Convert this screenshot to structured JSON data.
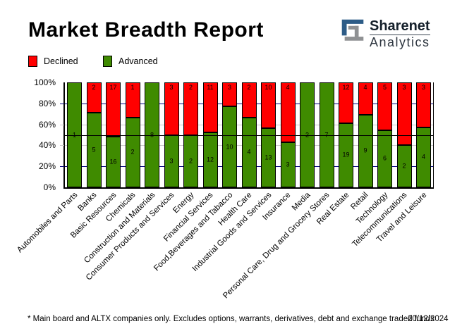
{
  "title": "Market Breadth Report",
  "logo": {
    "line1": "Sharenet",
    "line2": "Analytics",
    "blue": "#2d5c87",
    "grey": "#8f9193"
  },
  "legend": [
    {
      "label": "Declined",
      "color": "#ff0000"
    },
    {
      "label": "Advanced",
      "color": "#3f8b00"
    }
  ],
  "footer": {
    "note": "* Main board and ALTX companies only. Excludes options, warrants, derivatives, debt and exchange traded funds",
    "date": "20/12/2024"
  },
  "chart_data": {
    "type": "bar",
    "stacked": true,
    "normalized": "percent_of_total",
    "title": "Market Breadth Report",
    "categories": [
      "Automobiles and Parts",
      "Banks",
      "Basic Resources",
      "Chemicals",
      "Construction and Materials",
      "Consumer Products and Services",
      "Energy",
      "Financial Services",
      "Food,Beverages and Tabacco",
      "Health Care",
      "Industrial Goods and Services",
      "Insurance",
      "Media",
      "Personal Care, Drug and Grocery Stores",
      "Real Estate",
      "Retail",
      "Technology",
      "Telecommunications",
      "Travel and Leisure"
    ],
    "series": [
      {
        "name": "Declined",
        "color": "#ff0000",
        "values": [
          0,
          2,
          17,
          1,
          0,
          3,
          2,
          11,
          3,
          2,
          10,
          4,
          0,
          0,
          12,
          4,
          5,
          3,
          3
        ]
      },
      {
        "name": "Advanced",
        "color": "#3f8b00",
        "values": [
          1,
          5,
          16,
          2,
          8,
          3,
          2,
          12,
          10,
          4,
          13,
          3,
          2,
          7,
          19,
          9,
          6,
          2,
          4
        ]
      }
    ],
    "yticks": [
      "100%",
      "80%",
      "60%",
      "40%",
      "20%",
      "0%"
    ],
    "ylim": [
      0,
      100
    ],
    "gridlines": [
      {
        "level": 20,
        "color": "#000080"
      },
      {
        "level": 40,
        "color": "#c8c8c8"
      },
      {
        "level": 60,
        "color": "#c8c8c8"
      },
      {
        "level": 80,
        "color": "#000080"
      }
    ],
    "midline": {
      "level": 50,
      "color": "#000000"
    },
    "legend_position": "top-left",
    "bar_border_color": "#000000"
  }
}
